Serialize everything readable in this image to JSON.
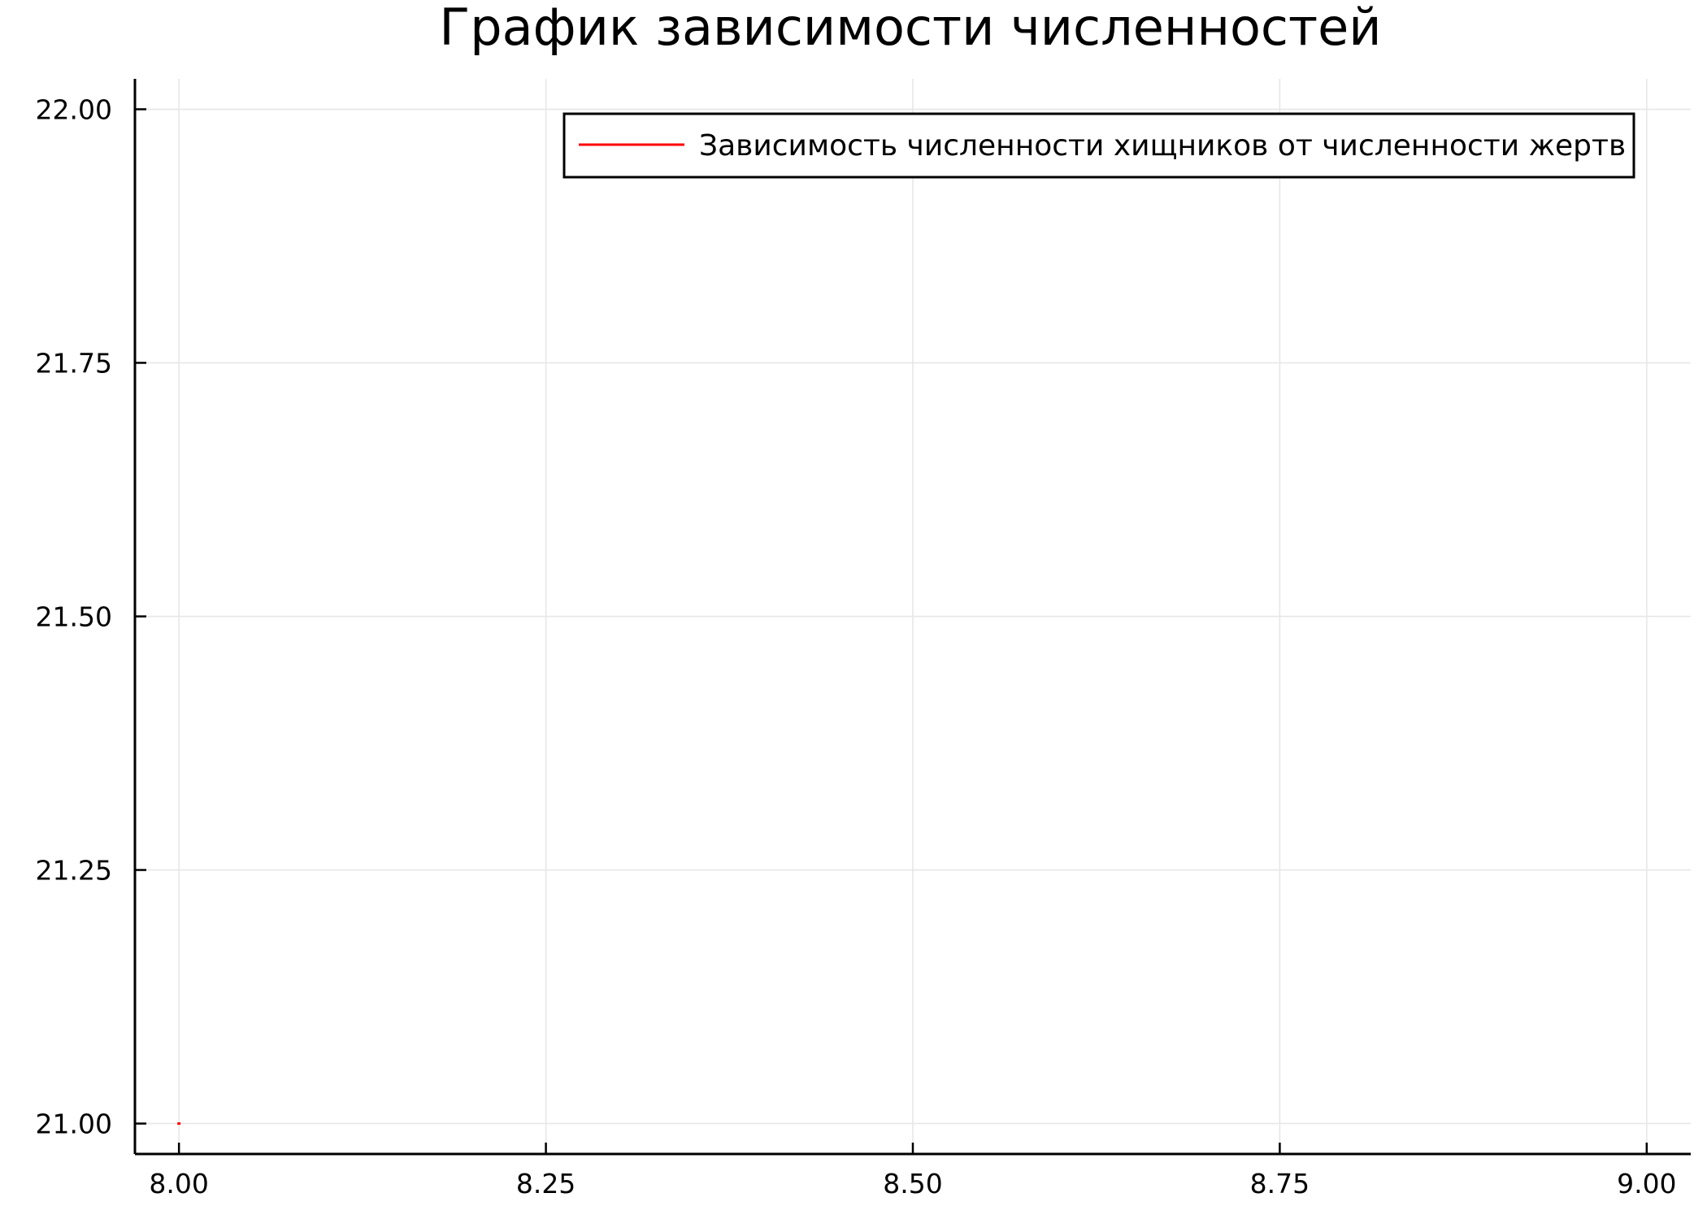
{
  "chart_data": {
    "type": "line",
    "title": "График зависимости численностей",
    "xlabel": "",
    "ylabel": "",
    "xlim": [
      7.97,
      9.03
    ],
    "ylim": [
      20.97,
      22.03
    ],
    "x_ticks": [
      8.0,
      8.25,
      8.5,
      8.75,
      9.0
    ],
    "x_tick_labels": [
      "8.00",
      "8.25",
      "8.50",
      "8.75",
      "9.00"
    ],
    "y_ticks": [
      21.0,
      21.25,
      21.5,
      21.75,
      22.0
    ],
    "y_tick_labels": [
      "21.00",
      "21.25",
      "21.50",
      "21.75",
      "22.00"
    ],
    "grid": true,
    "legend_position": "top-right",
    "series": [
      {
        "name": "Зависимость численности хищников от численности жертв",
        "color": "#ff0000",
        "x": [
          8.0,
          8.0
        ],
        "y": [
          21.0,
          21.0
        ]
      }
    ]
  }
}
